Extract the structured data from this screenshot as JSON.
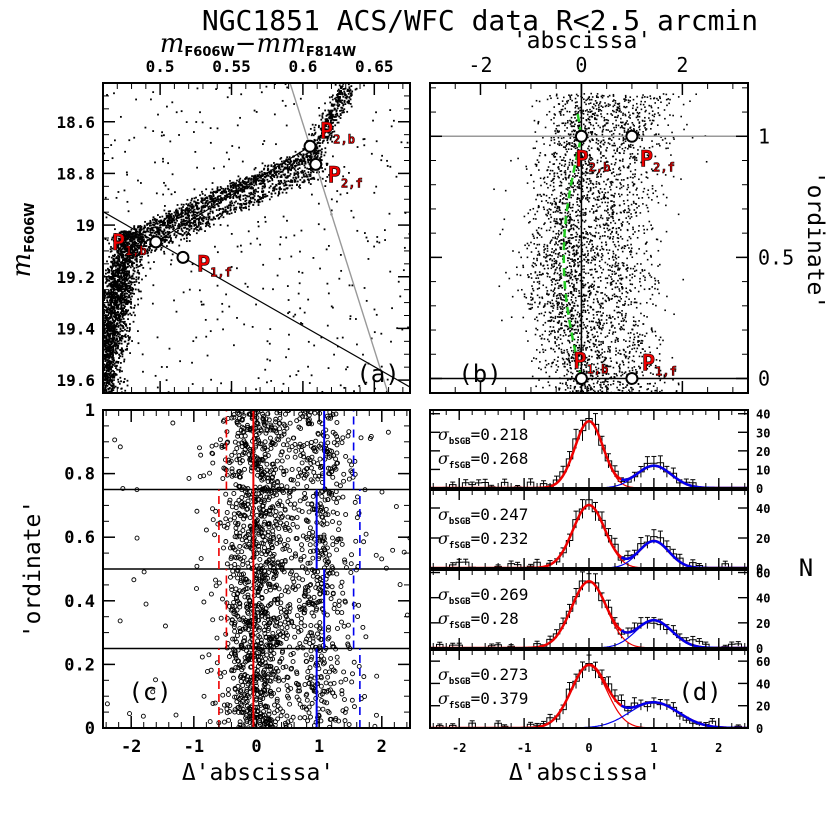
{
  "title": "NGC1851 ACS/WFC data R<2.5 arcmin",
  "panel_a": {
    "label": "(a)",
    "x_top_label": "m",
    "x_top_sub1": "F606W",
    "x_top_minus": "−m",
    "x_top_sub2": "F814W",
    "x_ticks": [
      0.5,
      0.55,
      0.6,
      0.65
    ],
    "y_label": "m",
    "y_sub": "F606W",
    "y_ticks": [
      18.6,
      18.8,
      19,
      19.2,
      19.4,
      19.6
    ],
    "xlim": [
      0.46,
      0.675
    ],
    "ylim": [
      19.65,
      18.45
    ],
    "points": [
      {
        "name": "P2,b",
        "main": "P",
        "sub": "2,b",
        "x": 0.605,
        "y": 18.695
      },
      {
        "name": "P2,f",
        "main": "P",
        "sub": "2,f",
        "x": 0.609,
        "y": 18.765
      },
      {
        "name": "P1,b",
        "main": "P",
        "sub": "1,b",
        "x": 0.497,
        "y": 19.065
      },
      {
        "name": "P1,f",
        "main": "P",
        "sub": "1,f",
        "x": 0.516,
        "y": 19.125
      }
    ]
  },
  "panel_b": {
    "label": "(b)",
    "x_top_label": "'abscissa'",
    "x_ticks": [
      -2,
      0,
      2
    ],
    "y_label": "'ordinate'",
    "y_ticks": [
      0,
      0.5,
      1
    ],
    "xlim": [
      -3.0,
      3.3
    ],
    "ylim": [
      -0.06,
      1.22
    ],
    "points": [
      {
        "name": "P2,b",
        "main": "P",
        "sub": "2,b",
        "x": 0,
        "y": 1
      },
      {
        "name": "P2,f",
        "main": "P",
        "sub": "2,f",
        "x": 1,
        "y": 1
      },
      {
        "name": "P1,b",
        "main": "P",
        "sub": "1,b",
        "x": 0,
        "y": 0
      },
      {
        "name": "P1,f",
        "main": "P",
        "sub": "1,f",
        "x": 1,
        "y": 0
      }
    ]
  },
  "panel_c": {
    "label": "(c)",
    "x_label": "Δ'abscissa'",
    "y_label": "'ordinate'",
    "x_ticks": [
      -2,
      -1,
      0,
      1,
      2
    ],
    "y_ticks": [
      0,
      0.2,
      0.4,
      0.6,
      0.8,
      1
    ],
    "xlim": [
      -2.45,
      2.45
    ],
    "ylim": [
      0,
      1
    ],
    "bin_edges": [
      0.25,
      0.5,
      0.75
    ],
    "red_solid": -0.05,
    "red_dashed": [
      -0.6,
      -0.48
    ],
    "blue_solid": [
      0.96,
      1.08
    ],
    "blue_dashed": [
      1.55,
      1.65
    ]
  },
  "panel_d": {
    "label": "(d)",
    "x_label": "Δ'abscissa'",
    "right_label": "N",
    "x_ticks": [
      -2,
      -1,
      0,
      1,
      2
    ],
    "xlim": [
      -2.45,
      2.45
    ],
    "bins": [
      {
        "sigma_b_label": "σ",
        "sigma_b_sub": "bSGB",
        "sigma_b": "=0.218",
        "sigma_f_label": "σ",
        "sigma_f_sub": "fSGB",
        "sigma_f": "=0.268",
        "yticks": [
          0,
          10,
          20,
          30,
          40
        ],
        "ymax": 42,
        "amp_b": 36,
        "sig_b": 0.218,
        "amp_f": 12,
        "sig_f": 0.268
      },
      {
        "sigma_b_label": "σ",
        "sigma_b_sub": "bSGB",
        "sigma_b": "=0.247",
        "sigma_f_label": "σ",
        "sigma_f_sub": "fSGB",
        "sigma_f": "=0.232",
        "yticks": [
          0,
          20,
          40
        ],
        "ymax": 52,
        "amp_b": 42,
        "sig_b": 0.247,
        "amp_f": 18,
        "sig_f": 0.232
      },
      {
        "sigma_b_label": "σ",
        "sigma_b_sub": "bSGB",
        "sigma_b": "=0.269",
        "sigma_f_label": "σ",
        "sigma_f_sub": "fSGB",
        "sigma_f": "=0.28",
        "yticks": [
          0,
          20,
          40,
          60
        ],
        "ymax": 62,
        "amp_b": 53,
        "sig_b": 0.269,
        "amp_f": 22,
        "sig_f": 0.28
      },
      {
        "sigma_b_label": "σ",
        "sigma_b_sub": "bSGB",
        "sigma_b": "=0.273",
        "sigma_f_label": "σ",
        "sigma_f_sub": "fSGB",
        "sigma_f": "=0.379",
        "yticks": [
          0,
          20,
          40,
          60
        ],
        "ymax": 70,
        "amp_b": 56,
        "sig_b": 0.273,
        "amp_f": 23,
        "sig_f": 0.379
      }
    ]
  },
  "chart_data": {
    "type": "scatter",
    "title": "NGC1851 ACS/WFC data R<2.5 arcmin",
    "panels": [
      {
        "id": "a",
        "type": "scatter",
        "xlabel": "mF606W−mF814W",
        "ylabel": "mF606W",
        "xlim": [
          0.46,
          0.675
        ],
        "ylim": [
          19.65,
          18.45
        ]
      },
      {
        "id": "b",
        "type": "scatter",
        "xlabel": "'abscissa'",
        "ylabel": "'ordinate'",
        "xlim": [
          -3.0,
          3.3
        ],
        "ylim": [
          -0.06,
          1.22
        ]
      },
      {
        "id": "c",
        "type": "scatter",
        "xlabel": "Δ'abscissa'",
        "ylabel": "'ordinate'",
        "xlim": [
          -2.45,
          2.45
        ],
        "ylim": [
          0,
          1
        ]
      },
      {
        "id": "d",
        "type": "bar",
        "xlabel": "Δ'abscissa'",
        "ylabel": "N",
        "xlim": [
          -2.45,
          2.45
        ],
        "series": [
          {
            "name": "bin 0.75-1",
            "sigma_bSGB": 0.218,
            "sigma_fSGB": 0.268
          },
          {
            "name": "bin 0.5-0.75",
            "sigma_bSGB": 0.247,
            "sigma_fSGB": 0.232
          },
          {
            "name": "bin 0.25-0.5",
            "sigma_bSGB": 0.269,
            "sigma_fSGB": 0.28
          },
          {
            "name": "bin 0-0.25",
            "sigma_bSGB": 0.273,
            "sigma_fSGB": 0.379
          }
        ]
      }
    ]
  }
}
